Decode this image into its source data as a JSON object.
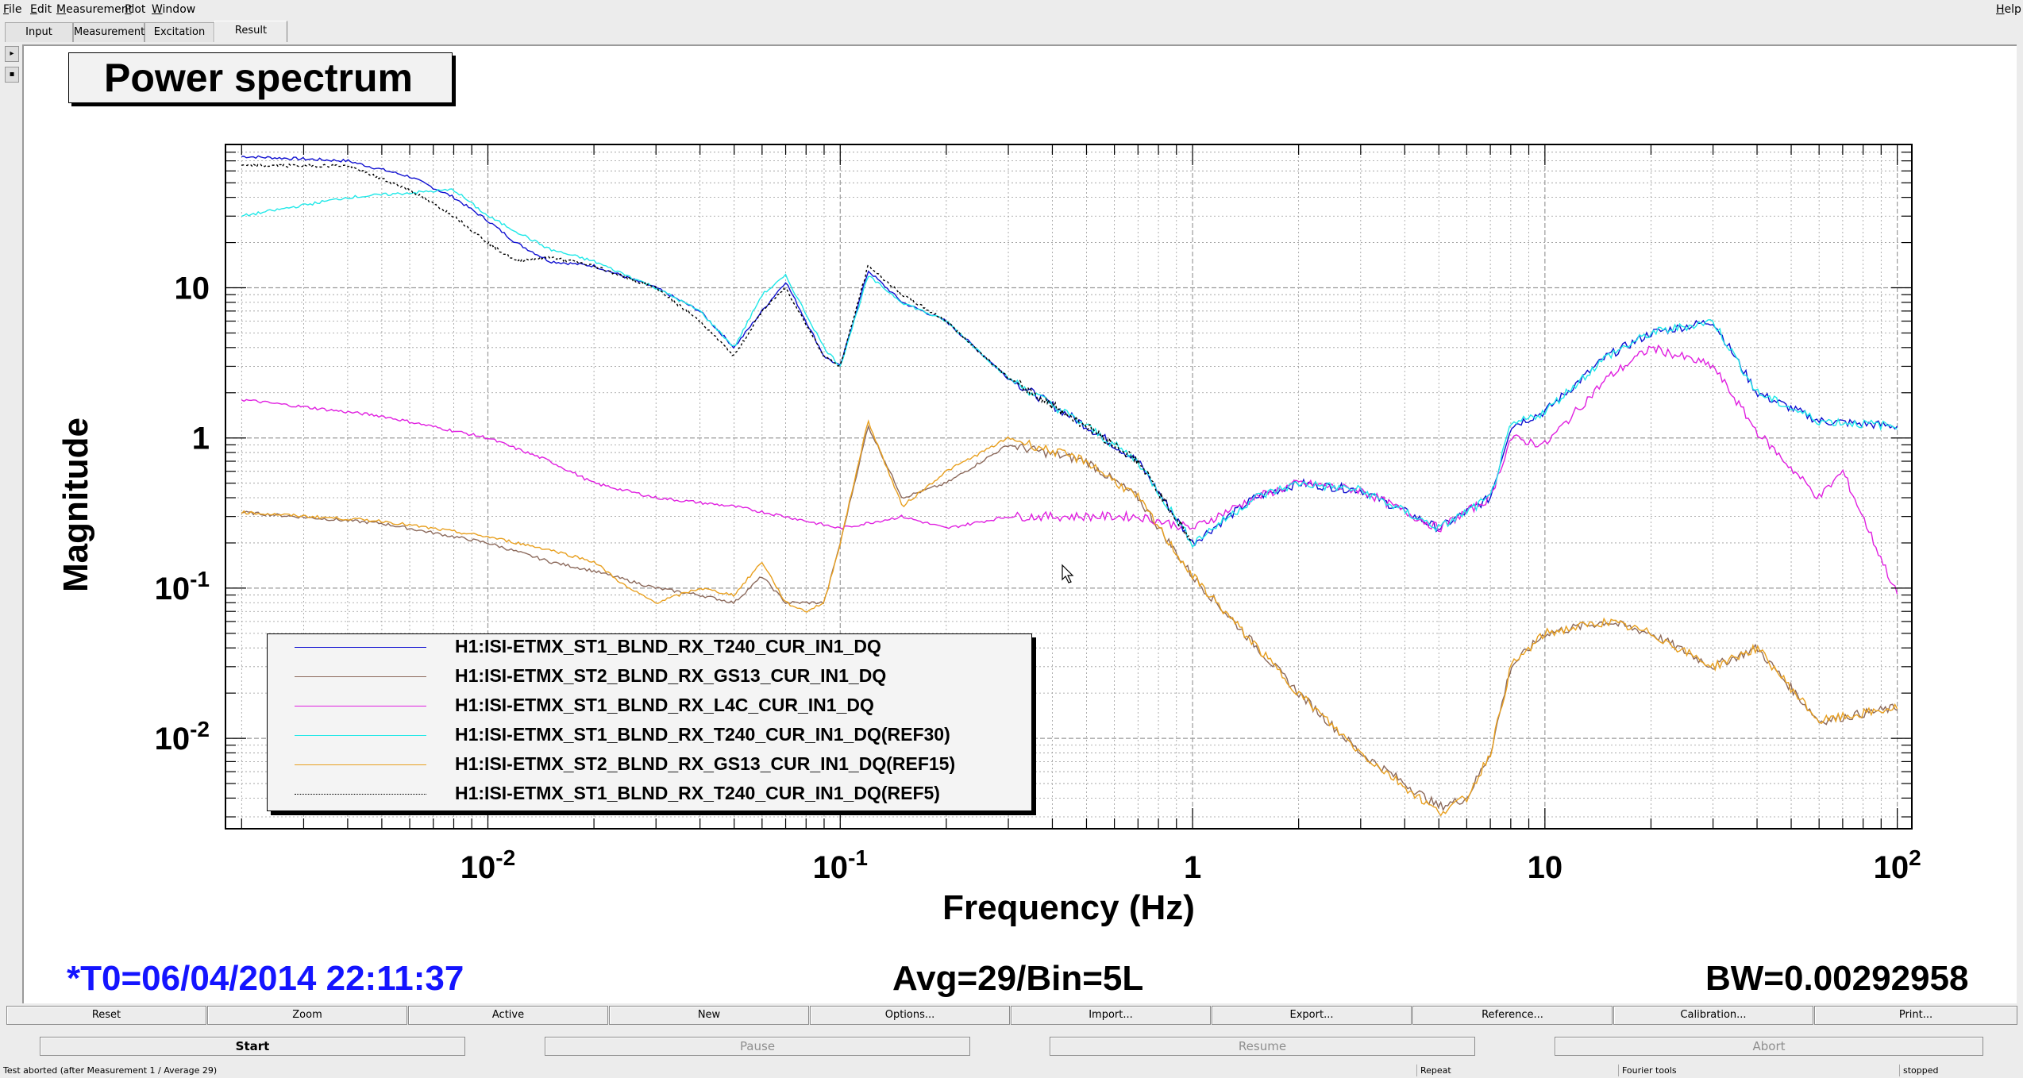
{
  "menubar": {
    "items": [
      "File",
      "Edit",
      "Measurement",
      "Plot",
      "Window"
    ],
    "help": "Help"
  },
  "tabs": [
    "Input",
    "Measurement",
    "Excitation",
    "Result"
  ],
  "active_tab": "Result",
  "plot": {
    "title": "Power spectrum",
    "t0_label": "*T0=06/04/2014 22:11:37",
    "avg_label": "Avg=29/Bin=5L",
    "bw_label": "BW=0.00292958"
  },
  "chart_data": {
    "type": "line",
    "title": "Power spectrum",
    "xlabel": "Frequency (Hz)",
    "ylabel": "Magnitude",
    "x_scale": "log",
    "y_scale": "log",
    "xlim": [
      0.0018,
      110
    ],
    "ylim": [
      0.0025,
      90
    ],
    "x_ticks": [
      "10^-2",
      "10^-1",
      "1",
      "10",
      "10^2"
    ],
    "y_ticks": [
      "10^-2",
      "10^-1",
      "1",
      "10"
    ],
    "grid": true,
    "legend_position": "bottom-left",
    "series": [
      {
        "name": "H1:ISI-ETMX_ST1_BLND_RX_T240_CUR_IN1_DQ",
        "color": "#1010d0",
        "style": "solid",
        "x": [
          0.002,
          0.004,
          0.006,
          0.008,
          0.01,
          0.012,
          0.015,
          0.02,
          0.03,
          0.04,
          0.05,
          0.06,
          0.07,
          0.09,
          0.1,
          0.12,
          0.15,
          0.2,
          0.3,
          0.5,
          0.7,
          1,
          1.5,
          2,
          3,
          5,
          7,
          8,
          10,
          15,
          20,
          30,
          40,
          60,
          100
        ],
        "y": [
          75,
          70,
          55,
          40,
          28,
          20,
          15,
          14,
          10,
          7,
          4,
          7,
          11,
          3.5,
          3,
          13,
          8,
          6,
          2.5,
          1.2,
          0.7,
          0.2,
          0.4,
          0.5,
          0.45,
          0.25,
          0.4,
          1.2,
          1.5,
          3.5,
          5,
          6,
          2,
          1.3,
          1.2
        ]
      },
      {
        "name": "H1:ISI-ETMX_ST2_BLND_RX_GS13_CUR_IN1_DQ",
        "color": "#8c6a5c",
        "style": "solid",
        "x": [
          0.002,
          0.005,
          0.01,
          0.015,
          0.02,
          0.03,
          0.04,
          0.05,
          0.06,
          0.07,
          0.08,
          0.09,
          0.1,
          0.12,
          0.15,
          0.2,
          0.3,
          0.5,
          0.7,
          1,
          2,
          3,
          5,
          6,
          7,
          8,
          10,
          15,
          20,
          30,
          40,
          60,
          100
        ],
        "y": [
          0.32,
          0.27,
          0.2,
          0.15,
          0.13,
          0.1,
          0.09,
          0.08,
          0.12,
          0.08,
          0.08,
          0.08,
          0.2,
          1.2,
          0.4,
          0.5,
          0.9,
          0.7,
          0.4,
          0.12,
          0.02,
          0.008,
          0.0035,
          0.004,
          0.008,
          0.03,
          0.05,
          0.06,
          0.05,
          0.03,
          0.04,
          0.013,
          0.016
        ]
      },
      {
        "name": "H1:ISI-ETMX_ST1_BLND_RX_L4C_CUR_IN1_DQ",
        "color": "#e020e0",
        "style": "solid",
        "x": [
          0.002,
          0.005,
          0.01,
          0.015,
          0.02,
          0.03,
          0.05,
          0.07,
          0.1,
          0.15,
          0.2,
          0.3,
          0.5,
          0.7,
          1,
          1.5,
          2,
          3,
          5,
          7,
          8,
          10,
          15,
          20,
          30,
          40,
          60,
          70,
          100
        ],
        "y": [
          1.8,
          1.4,
          1,
          0.7,
          0.5,
          0.4,
          0.35,
          0.3,
          0.25,
          0.3,
          0.25,
          0.3,
          0.3,
          0.3,
          0.25,
          0.4,
          0.5,
          0.45,
          0.25,
          0.4,
          1,
          0.9,
          2.5,
          4,
          3,
          1.1,
          0.4,
          0.6,
          0.09
        ]
      },
      {
        "name": "H1:ISI-ETMX_ST1_BLND_RX_T240_CUR_IN1_DQ(REF30)",
        "color": "#20e8e8",
        "style": "solid",
        "x": [
          0.002,
          0.004,
          0.008,
          0.01,
          0.015,
          0.02,
          0.03,
          0.04,
          0.05,
          0.06,
          0.07,
          0.09,
          0.1,
          0.12,
          0.15,
          0.2,
          0.3,
          0.5,
          0.7,
          1,
          1.5,
          2,
          3,
          5,
          7,
          8,
          10,
          15,
          20,
          30,
          40,
          60,
          100
        ],
        "y": [
          30,
          40,
          45,
          30,
          18,
          15,
          10,
          7,
          4,
          9,
          12,
          4,
          3,
          12,
          8,
          6,
          2.5,
          1.2,
          0.7,
          0.2,
          0.4,
          0.5,
          0.45,
          0.25,
          0.4,
          1.2,
          1.5,
          3.5,
          5,
          6,
          2,
          1.3,
          1.2
        ]
      },
      {
        "name": "H1:ISI-ETMX_ST2_BLND_RX_GS13_CUR_IN1_DQ(REF15)",
        "color": "#e8a020",
        "style": "solid",
        "x": [
          0.002,
          0.005,
          0.01,
          0.015,
          0.02,
          0.025,
          0.03,
          0.04,
          0.05,
          0.06,
          0.07,
          0.08,
          0.09,
          0.1,
          0.12,
          0.15,
          0.2,
          0.3,
          0.5,
          0.7,
          1,
          2,
          3,
          5,
          6,
          7,
          8,
          10,
          15,
          20,
          30,
          40,
          60,
          100
        ],
        "y": [
          0.32,
          0.28,
          0.22,
          0.18,
          0.15,
          0.1,
          0.08,
          0.1,
          0.09,
          0.15,
          0.08,
          0.07,
          0.08,
          0.2,
          1.3,
          0.35,
          0.6,
          1,
          0.7,
          0.4,
          0.12,
          0.02,
          0.008,
          0.0032,
          0.004,
          0.008,
          0.03,
          0.05,
          0.06,
          0.05,
          0.03,
          0.04,
          0.013,
          0.016
        ]
      },
      {
        "name": "H1:ISI-ETMX_ST1_BLND_RX_T240_CUR_IN1_DQ(REF5)",
        "color": "#000000",
        "style": "dotted",
        "x": [
          0.002,
          0.004,
          0.006,
          0.008,
          0.01,
          0.012,
          0.015,
          0.02,
          0.03,
          0.04,
          0.05,
          0.06,
          0.07,
          0.09,
          0.1,
          0.12,
          0.15,
          0.2,
          0.3,
          0.5,
          0.7,
          1
        ],
        "y": [
          65,
          65,
          45,
          30,
          20,
          15,
          16,
          14,
          10,
          6,
          3.5,
          7,
          10,
          3.5,
          3,
          14,
          9,
          6,
          2.5,
          1.2,
          0.7,
          0.2
        ]
      }
    ]
  },
  "toolbar": [
    "Reset",
    "Zoom",
    "Active",
    "New",
    "Options...",
    "Import...",
    "Export...",
    "Reference...",
    "Calibration...",
    "Print..."
  ],
  "controls": {
    "start": "Start",
    "pause": "Pause",
    "resume": "Resume",
    "abort": "Abort"
  },
  "status": {
    "message": "Test aborted (after Measurement 1 / Average 29)",
    "repeat": "Repeat",
    "tools": "Fourier tools",
    "state": "stopped"
  }
}
